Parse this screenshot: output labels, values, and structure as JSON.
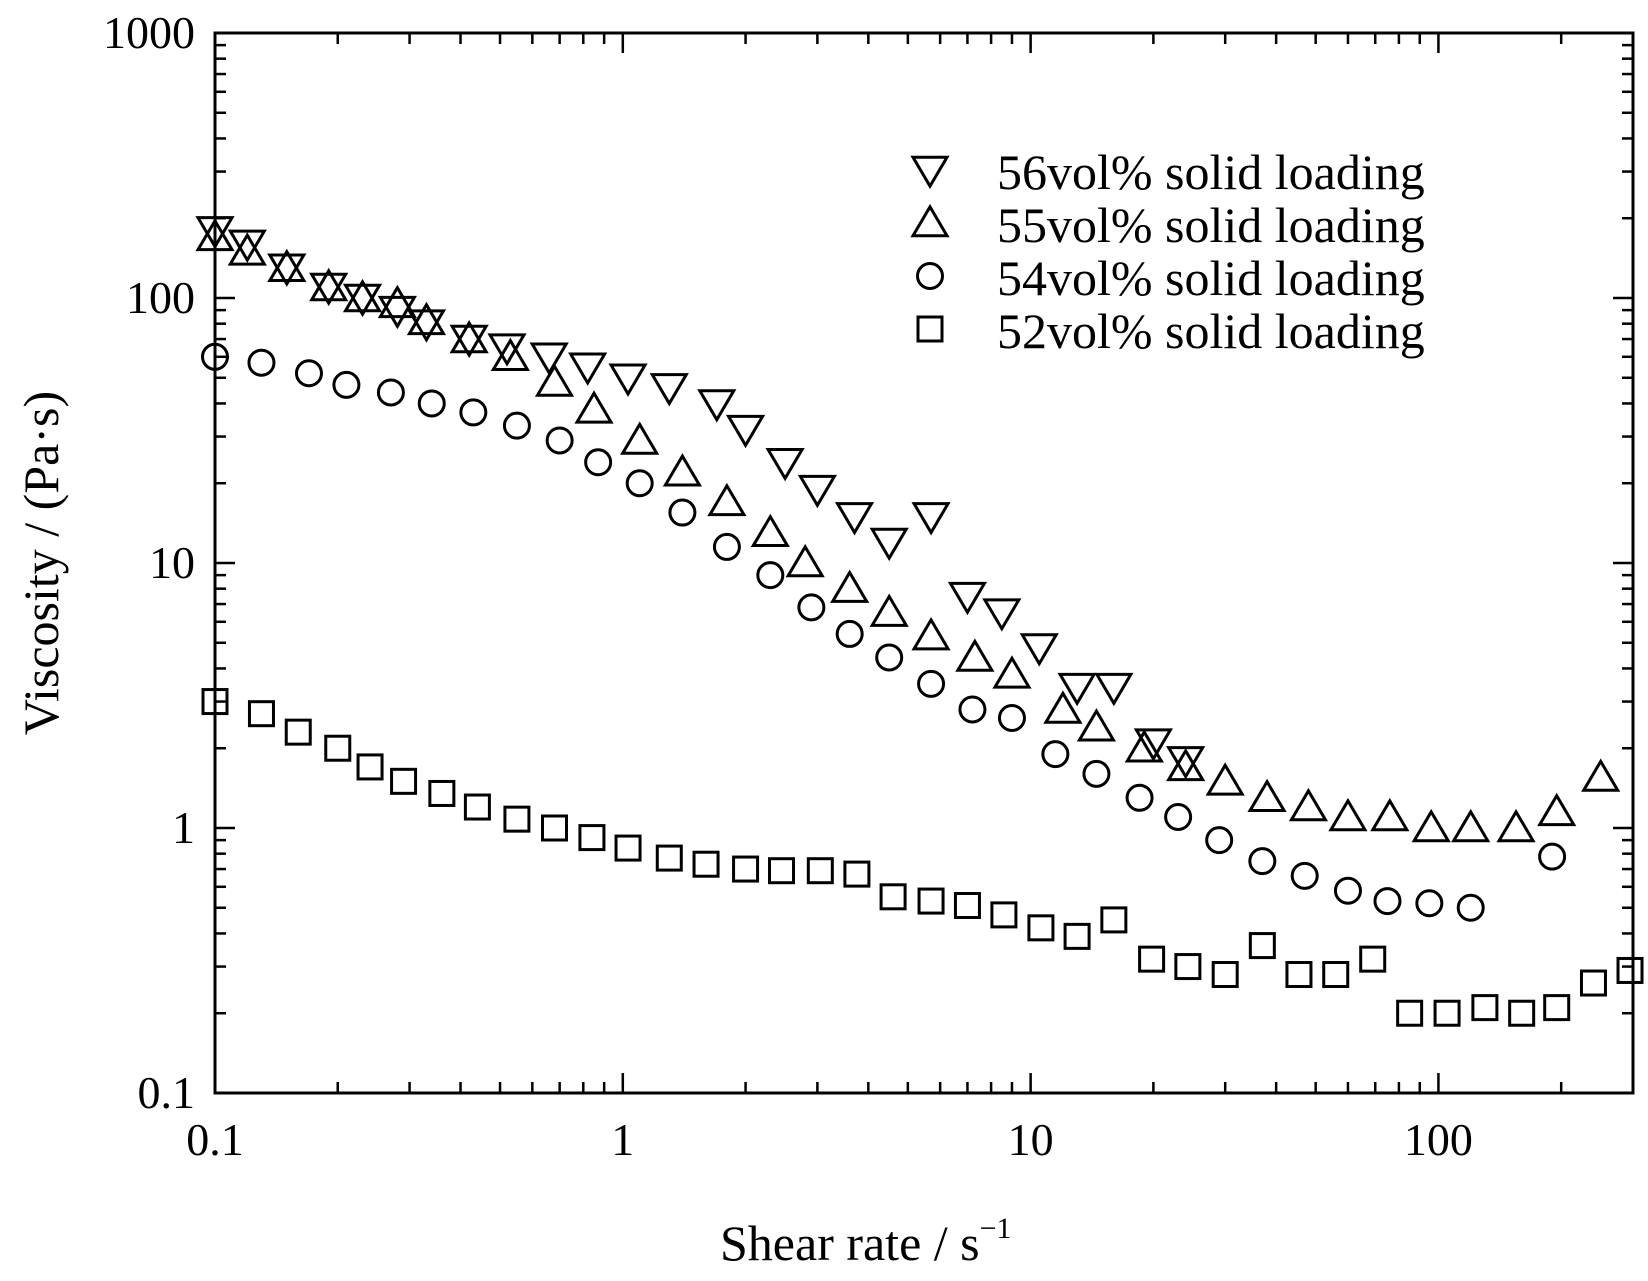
{
  "chart_data": {
    "type": "scatter",
    "xscale": "log",
    "yscale": "log",
    "xlim": [
      0.1,
      300
    ],
    "ylim": [
      0.1,
      1000
    ],
    "xlabel": "Shear rate / s",
    "xlabel_superscript": "−1",
    "ylabel": "Viscosity / (Pa·s)",
    "x_tick_labels": [
      "0.1",
      "1",
      "10",
      "100"
    ],
    "y_tick_labels": [
      "0.1",
      "1",
      "10",
      "100",
      "1000"
    ],
    "grid": false,
    "legend_position": "top-right",
    "series": [
      {
        "name": "56vol% solid loading",
        "marker": "triangle-down",
        "points": [
          [
            0.1,
            180
          ],
          [
            0.12,
            160
          ],
          [
            0.15,
            130
          ],
          [
            0.19,
            110
          ],
          [
            0.23,
            100
          ],
          [
            0.28,
            90
          ],
          [
            0.33,
            80
          ],
          [
            0.42,
            70
          ],
          [
            0.52,
            65
          ],
          [
            0.66,
            60
          ],
          [
            0.82,
            55
          ],
          [
            1.03,
            50
          ],
          [
            1.3,
            46
          ],
          [
            1.7,
            40
          ],
          [
            2.0,
            32
          ],
          [
            2.5,
            24
          ],
          [
            3.0,
            19
          ],
          [
            3.7,
            15
          ],
          [
            4.5,
            12
          ],
          [
            5.7,
            15
          ],
          [
            7.0,
            7.5
          ],
          [
            8.5,
            6.5
          ],
          [
            10.5,
            4.8
          ],
          [
            13.0,
            3.4
          ],
          [
            16.0,
            3.4
          ],
          [
            20.0,
            2.1
          ],
          [
            24.0,
            1.8
          ]
        ]
      },
      {
        "name": "55vol% solid loading",
        "marker": "triangle-up",
        "points": [
          [
            0.1,
            170
          ],
          [
            0.12,
            150
          ],
          [
            0.15,
            130
          ],
          [
            0.19,
            110
          ],
          [
            0.23,
            100
          ],
          [
            0.28,
            95
          ],
          [
            0.33,
            82
          ],
          [
            0.42,
            70
          ],
          [
            0.53,
            60
          ],
          [
            0.68,
            48
          ],
          [
            0.85,
            38
          ],
          [
            1.1,
            29
          ],
          [
            1.4,
            22
          ],
          [
            1.8,
            17
          ],
          [
            2.3,
            13
          ],
          [
            2.8,
            10
          ],
          [
            3.6,
            8
          ],
          [
            4.5,
            6.5
          ],
          [
            5.7,
            5.3
          ],
          [
            7.3,
            4.4
          ],
          [
            9.0,
            3.8
          ],
          [
            12.0,
            2.8
          ],
          [
            14.5,
            2.4
          ],
          [
            19.0,
            2.0
          ],
          [
            24.0,
            1.7
          ],
          [
            30.0,
            1.5
          ],
          [
            38.0,
            1.3
          ],
          [
            48.0,
            1.2
          ],
          [
            60.0,
            1.1
          ],
          [
            76.0,
            1.1
          ],
          [
            96.0,
            1.0
          ],
          [
            120.0,
            1.0
          ],
          [
            155.0,
            1.0
          ],
          [
            195.0,
            1.15
          ],
          [
            250.0,
            1.55
          ]
        ]
      },
      {
        "name": "54vol% solid loading",
        "marker": "circle",
        "points": [
          [
            0.1,
            60
          ],
          [
            0.13,
            57
          ],
          [
            0.17,
            52
          ],
          [
            0.21,
            47
          ],
          [
            0.27,
            44
          ],
          [
            0.34,
            40
          ],
          [
            0.43,
            37
          ],
          [
            0.55,
            33
          ],
          [
            0.7,
            29
          ],
          [
            0.87,
            24
          ],
          [
            1.1,
            20
          ],
          [
            1.4,
            15.5
          ],
          [
            1.8,
            11.5
          ],
          [
            2.3,
            9.0
          ],
          [
            2.9,
            6.8
          ],
          [
            3.6,
            5.4
          ],
          [
            4.5,
            4.4
          ],
          [
            5.7,
            3.5
          ],
          [
            7.2,
            2.8
          ],
          [
            9.0,
            2.6
          ],
          [
            11.5,
            1.9
          ],
          [
            14.5,
            1.6
          ],
          [
            18.5,
            1.3
          ],
          [
            23.0,
            1.1
          ],
          [
            29.0,
            0.9
          ],
          [
            37.0,
            0.75
          ],
          [
            47.0,
            0.66
          ],
          [
            60.0,
            0.58
          ],
          [
            75.0,
            0.53
          ],
          [
            95.0,
            0.52
          ],
          [
            120.0,
            0.5
          ],
          [
            190.0,
            0.78
          ]
        ]
      },
      {
        "name": "52vol% solid loading",
        "marker": "square",
        "points": [
          [
            0.1,
            3.0
          ],
          [
            0.13,
            2.7
          ],
          [
            0.16,
            2.3
          ],
          [
            0.2,
            2.0
          ],
          [
            0.24,
            1.7
          ],
          [
            0.29,
            1.5
          ],
          [
            0.36,
            1.35
          ],
          [
            0.44,
            1.2
          ],
          [
            0.55,
            1.08
          ],
          [
            0.68,
            1.0
          ],
          [
            0.84,
            0.92
          ],
          [
            1.03,
            0.84
          ],
          [
            1.3,
            0.77
          ],
          [
            1.6,
            0.73
          ],
          [
            2.0,
            0.7
          ],
          [
            2.45,
            0.69
          ],
          [
            3.05,
            0.69
          ],
          [
            3.75,
            0.67
          ],
          [
            4.6,
            0.55
          ],
          [
            5.7,
            0.53
          ],
          [
            7.0,
            0.51
          ],
          [
            8.6,
            0.47
          ],
          [
            10.6,
            0.42
          ],
          [
            13.0,
            0.39
          ],
          [
            16.0,
            0.45
          ],
          [
            19.8,
            0.32
          ],
          [
            24.3,
            0.3
          ],
          [
            30.0,
            0.28
          ],
          [
            37.0,
            0.36
          ],
          [
            45.5,
            0.28
          ],
          [
            56.0,
            0.28
          ],
          [
            69.0,
            0.32
          ],
          [
            85.0,
            0.2
          ],
          [
            105.0,
            0.2
          ],
          [
            130.0,
            0.21
          ],
          [
            160.0,
            0.2
          ],
          [
            195.0,
            0.21
          ],
          [
            240.0,
            0.26
          ],
          [
            295.0,
            0.29
          ]
        ]
      }
    ]
  }
}
